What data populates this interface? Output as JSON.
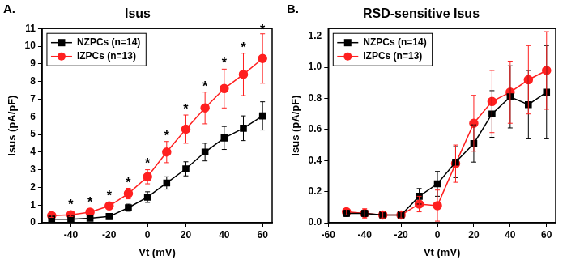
{
  "chart_data": [
    {
      "type": "line",
      "panel_label": "A.",
      "title": "Isus",
      "x_label": "Vt (mV)",
      "y_label": "Isus (pA/pF)",
      "xlim": [
        -55,
        65
      ],
      "xticks": [
        -40,
        -20,
        0,
        20,
        40,
        60
      ],
      "ylim": [
        0,
        11
      ],
      "yticks": [
        0,
        1,
        2,
        3,
        4,
        5,
        6,
        7,
        8,
        9,
        10,
        11
      ],
      "grid": false,
      "legend": "upper left",
      "x": [
        -50,
        -40,
        -30,
        -20,
        -10,
        0,
        10,
        20,
        30,
        40,
        50,
        60
      ],
      "series": [
        {
          "name": "NZPCs (n=14)",
          "color": "#000000",
          "marker": "square",
          "line_style": "solid",
          "values": [
            0.2,
            0.2,
            0.25,
            0.35,
            0.85,
            1.45,
            2.25,
            3.05,
            4.0,
            4.8,
            5.35,
            6.05
          ],
          "errors": [
            0.1,
            0.1,
            0.1,
            0.15,
            0.2,
            0.3,
            0.35,
            0.4,
            0.5,
            0.65,
            0.7,
            0.8
          ]
        },
        {
          "name": "IZPCs (n=13)",
          "color": "#ff2020",
          "marker": "circle",
          "line_style": "solid",
          "values": [
            0.4,
            0.45,
            0.6,
            0.95,
            1.65,
            2.6,
            4.0,
            5.3,
            6.5,
            7.6,
            8.4,
            9.3
          ],
          "errors": [
            0.1,
            0.1,
            0.15,
            0.2,
            0.3,
            0.4,
            0.6,
            0.8,
            0.9,
            1.1,
            1.2,
            1.4
          ]
        }
      ],
      "annotations": [
        {
          "x": -40,
          "y": 1.0,
          "text": "*"
        },
        {
          "x": -30,
          "y": 1.1,
          "text": "*"
        },
        {
          "x": -20,
          "y": 1.5,
          "text": "*"
        },
        {
          "x": -10,
          "y": 2.2,
          "text": "*"
        },
        {
          "x": 0,
          "y": 3.3,
          "text": "*"
        },
        {
          "x": 10,
          "y": 4.9,
          "text": "*"
        },
        {
          "x": 20,
          "y": 6.4,
          "text": "*"
        },
        {
          "x": 30,
          "y": 7.7,
          "text": "*"
        },
        {
          "x": 40,
          "y": 9.0,
          "text": "*"
        },
        {
          "x": 50,
          "y": 9.9,
          "text": "*"
        },
        {
          "x": 60,
          "y": 10.9,
          "text": "*"
        }
      ]
    },
    {
      "type": "line",
      "panel_label": "B.",
      "title": "RSD-sensitive Isus",
      "x_label": "Vt (mV)",
      "y_label": "Isus (pA/pF)",
      "xlim": [
        -60,
        65
      ],
      "xticks": [
        -60,
        -40,
        -20,
        0,
        20,
        40,
        60
      ],
      "ylim": [
        0,
        1.25
      ],
      "yticks": [
        {
          "value": 0,
          "label": "0.0"
        },
        0.2,
        0.4,
        0.6,
        0.8,
        {
          "value": 1,
          "label": "1.0"
        },
        1.2
      ],
      "grid": false,
      "legend": "upper left",
      "x": [
        -50,
        -40,
        -30,
        -20,
        -10,
        0,
        10,
        20,
        30,
        40,
        50,
        60
      ],
      "series": [
        {
          "name": "NZPCs (n=14)",
          "color": "#000000",
          "marker": "square",
          "line_style": "solid",
          "values": [
            0.06,
            0.06,
            0.05,
            0.05,
            0.17,
            0.25,
            0.39,
            0.51,
            0.7,
            0.81,
            0.76,
            0.84
          ],
          "errors": [
            0.02,
            0.02,
            0.02,
            0.02,
            0.05,
            0.08,
            0.1,
            0.12,
            0.15,
            0.2,
            0.22,
            0.3
          ]
        },
        {
          "name": "IZPCs (n=13)",
          "color": "#ff2020",
          "marker": "circle",
          "line_style": "solid",
          "values": [
            0.07,
            0.06,
            0.05,
            0.05,
            0.12,
            0.11,
            0.38,
            0.64,
            0.78,
            0.84,
            0.92,
            0.98
          ],
          "errors": [
            0.02,
            0.03,
            0.02,
            0.02,
            0.05,
            0.1,
            0.12,
            0.18,
            0.2,
            0.2,
            0.22,
            0.25
          ]
        }
      ]
    }
  ]
}
